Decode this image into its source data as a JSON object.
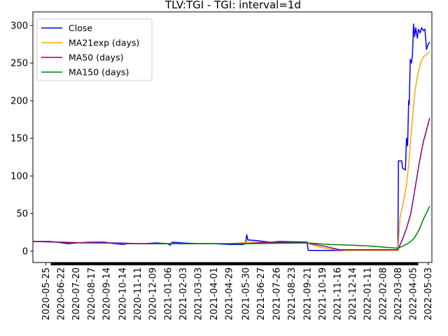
{
  "chart_data": {
    "type": "line",
    "title": "TLV:TGI - TGI: interval=1d",
    "xlabel": "",
    "ylabel": "",
    "x_range": [
      "2020-05-01",
      "2022-05-10"
    ],
    "ylim": [
      -15,
      318
    ],
    "yticks": [
      0,
      50,
      100,
      150,
      200,
      250,
      300
    ],
    "xticks": [
      "2020-05-25",
      "2020-06-22",
      "2020-07-20",
      "2020-08-17",
      "2020-09-14",
      "2020-10-14",
      "2020-11-11",
      "2020-12-09",
      "2021-01-06",
      "2021-02-03",
      "2021-03-03",
      "2021-04-01",
      "2021-04-29",
      "2021-05-30",
      "2021-06-27",
      "2021-07-26",
      "2021-08-23",
      "2021-09-21",
      "2021-10-19",
      "2021-11-16",
      "2021-12-14",
      "2022-01-11",
      "2022-02-08",
      "2022-03-08",
      "2022-04-05",
      "2022-05-03"
    ],
    "grid": false,
    "legend": "top-left",
    "series": [
      {
        "name": "Close",
        "color": "#0000ff",
        "points": [
          [
            "2020-05-01",
            13
          ],
          [
            "2020-06-01",
            13
          ],
          [
            "2020-06-15",
            12
          ],
          [
            "2020-06-25",
            11
          ],
          [
            "2020-07-05",
            10
          ],
          [
            "2020-07-20",
            11
          ],
          [
            "2020-08-10",
            12
          ],
          [
            "2020-09-10",
            12
          ],
          [
            "2020-09-28",
            10
          ],
          [
            "2020-10-14",
            9
          ],
          [
            "2020-10-25",
            10
          ],
          [
            "2020-11-25",
            10
          ],
          [
            "2020-12-15",
            11
          ],
          [
            "2021-01-06",
            10
          ],
          [
            "2021-01-10",
            8
          ],
          [
            "2021-01-14",
            12
          ],
          [
            "2021-02-01",
            11
          ],
          [
            "2021-03-01",
            10
          ],
          [
            "2021-04-01",
            10
          ],
          [
            "2021-04-29",
            9
          ],
          [
            "2021-05-25",
            9
          ],
          [
            "2021-05-30",
            10
          ],
          [
            "2021-06-01",
            22
          ],
          [
            "2021-06-03",
            15
          ],
          [
            "2021-06-20",
            14
          ],
          [
            "2021-07-15",
            12
          ],
          [
            "2021-08-01",
            13
          ],
          [
            "2021-09-21",
            12
          ],
          [
            "2021-09-23",
            1
          ],
          [
            "2021-11-01",
            1
          ],
          [
            "2022-01-01",
            1
          ],
          [
            "2022-03-08",
            1
          ],
          [
            "2022-03-09",
            120
          ],
          [
            "2022-03-15",
            120
          ],
          [
            "2022-03-17",
            110
          ],
          [
            "2022-03-22",
            108
          ],
          [
            "2022-03-24",
            150
          ],
          [
            "2022-03-26",
            140
          ],
          [
            "2022-03-28",
            200
          ],
          [
            "2022-03-29",
            195
          ],
          [
            "2022-03-31",
            255
          ],
          [
            "2022-04-02",
            250
          ],
          [
            "2022-04-04",
            260
          ],
          [
            "2022-04-06",
            302
          ],
          [
            "2022-04-08",
            285
          ],
          [
            "2022-04-10",
            297
          ],
          [
            "2022-04-13",
            283
          ],
          [
            "2022-04-15",
            295
          ],
          [
            "2022-04-18",
            290
          ],
          [
            "2022-04-21",
            297
          ],
          [
            "2022-04-24",
            293
          ],
          [
            "2022-04-27",
            295
          ],
          [
            "2022-04-30",
            268
          ],
          [
            "2022-05-03",
            275
          ],
          [
            "2022-05-06",
            278
          ]
        ]
      },
      {
        "name": "MA21exp (days)",
        "color": "#ffa500",
        "points": [
          [
            "2020-05-01",
            13
          ],
          [
            "2020-07-01",
            12
          ],
          [
            "2020-09-01",
            11
          ],
          [
            "2020-11-01",
            10
          ],
          [
            "2021-01-01",
            10
          ],
          [
            "2021-03-01",
            10
          ],
          [
            "2021-05-01",
            10
          ],
          [
            "2021-06-05",
            12
          ],
          [
            "2021-08-01",
            12
          ],
          [
            "2021-09-21",
            11
          ],
          [
            "2021-10-10",
            6
          ],
          [
            "2021-11-01",
            3
          ],
          [
            "2021-12-01",
            1
          ],
          [
            "2022-03-08",
            1
          ],
          [
            "2022-03-12",
            45
          ],
          [
            "2022-03-18",
            65
          ],
          [
            "2022-03-24",
            88
          ],
          [
            "2022-03-28",
            115
          ],
          [
            "2022-04-01",
            150
          ],
          [
            "2022-04-05",
            185
          ],
          [
            "2022-04-09",
            215
          ],
          [
            "2022-04-14",
            235
          ],
          [
            "2022-04-19",
            250
          ],
          [
            "2022-04-24",
            258
          ],
          [
            "2022-05-06",
            265
          ]
        ]
      },
      {
        "name": "MA50 (days)",
        "color": "#800080",
        "points": [
          [
            "2020-05-01",
            13
          ],
          [
            "2020-08-01",
            11
          ],
          [
            "2020-10-01",
            11
          ],
          [
            "2020-11-15",
            10
          ],
          [
            "2021-01-06",
            10
          ],
          [
            "2021-03-01",
            10
          ],
          [
            "2021-06-01",
            10
          ],
          [
            "2021-07-10",
            12
          ],
          [
            "2021-09-21",
            11
          ],
          [
            "2021-10-20",
            7
          ],
          [
            "2021-11-20",
            2
          ],
          [
            "2022-03-08",
            2
          ],
          [
            "2022-03-16",
            15
          ],
          [
            "2022-03-24",
            30
          ],
          [
            "2022-04-01",
            50
          ],
          [
            "2022-04-08",
            80
          ],
          [
            "2022-04-16",
            115
          ],
          [
            "2022-04-24",
            145
          ],
          [
            "2022-05-06",
            177
          ]
        ]
      },
      {
        "name": "MA150 (days)",
        "color": "#008000",
        "points": [
          [
            "2020-12-09",
            10
          ],
          [
            "2021-03-01",
            10
          ],
          [
            "2021-06-01",
            10
          ],
          [
            "2021-09-21",
            11
          ],
          [
            "2021-11-01",
            9
          ],
          [
            "2021-12-14",
            8
          ],
          [
            "2022-01-11",
            7
          ],
          [
            "2022-03-08",
            4
          ],
          [
            "2022-03-18",
            7
          ],
          [
            "2022-03-26",
            10
          ],
          [
            "2022-04-01",
            13
          ],
          [
            "2022-04-08",
            18
          ],
          [
            "2022-04-16",
            28
          ],
          [
            "2022-04-24",
            42
          ],
          [
            "2022-05-06",
            60
          ]
        ]
      }
    ]
  }
}
